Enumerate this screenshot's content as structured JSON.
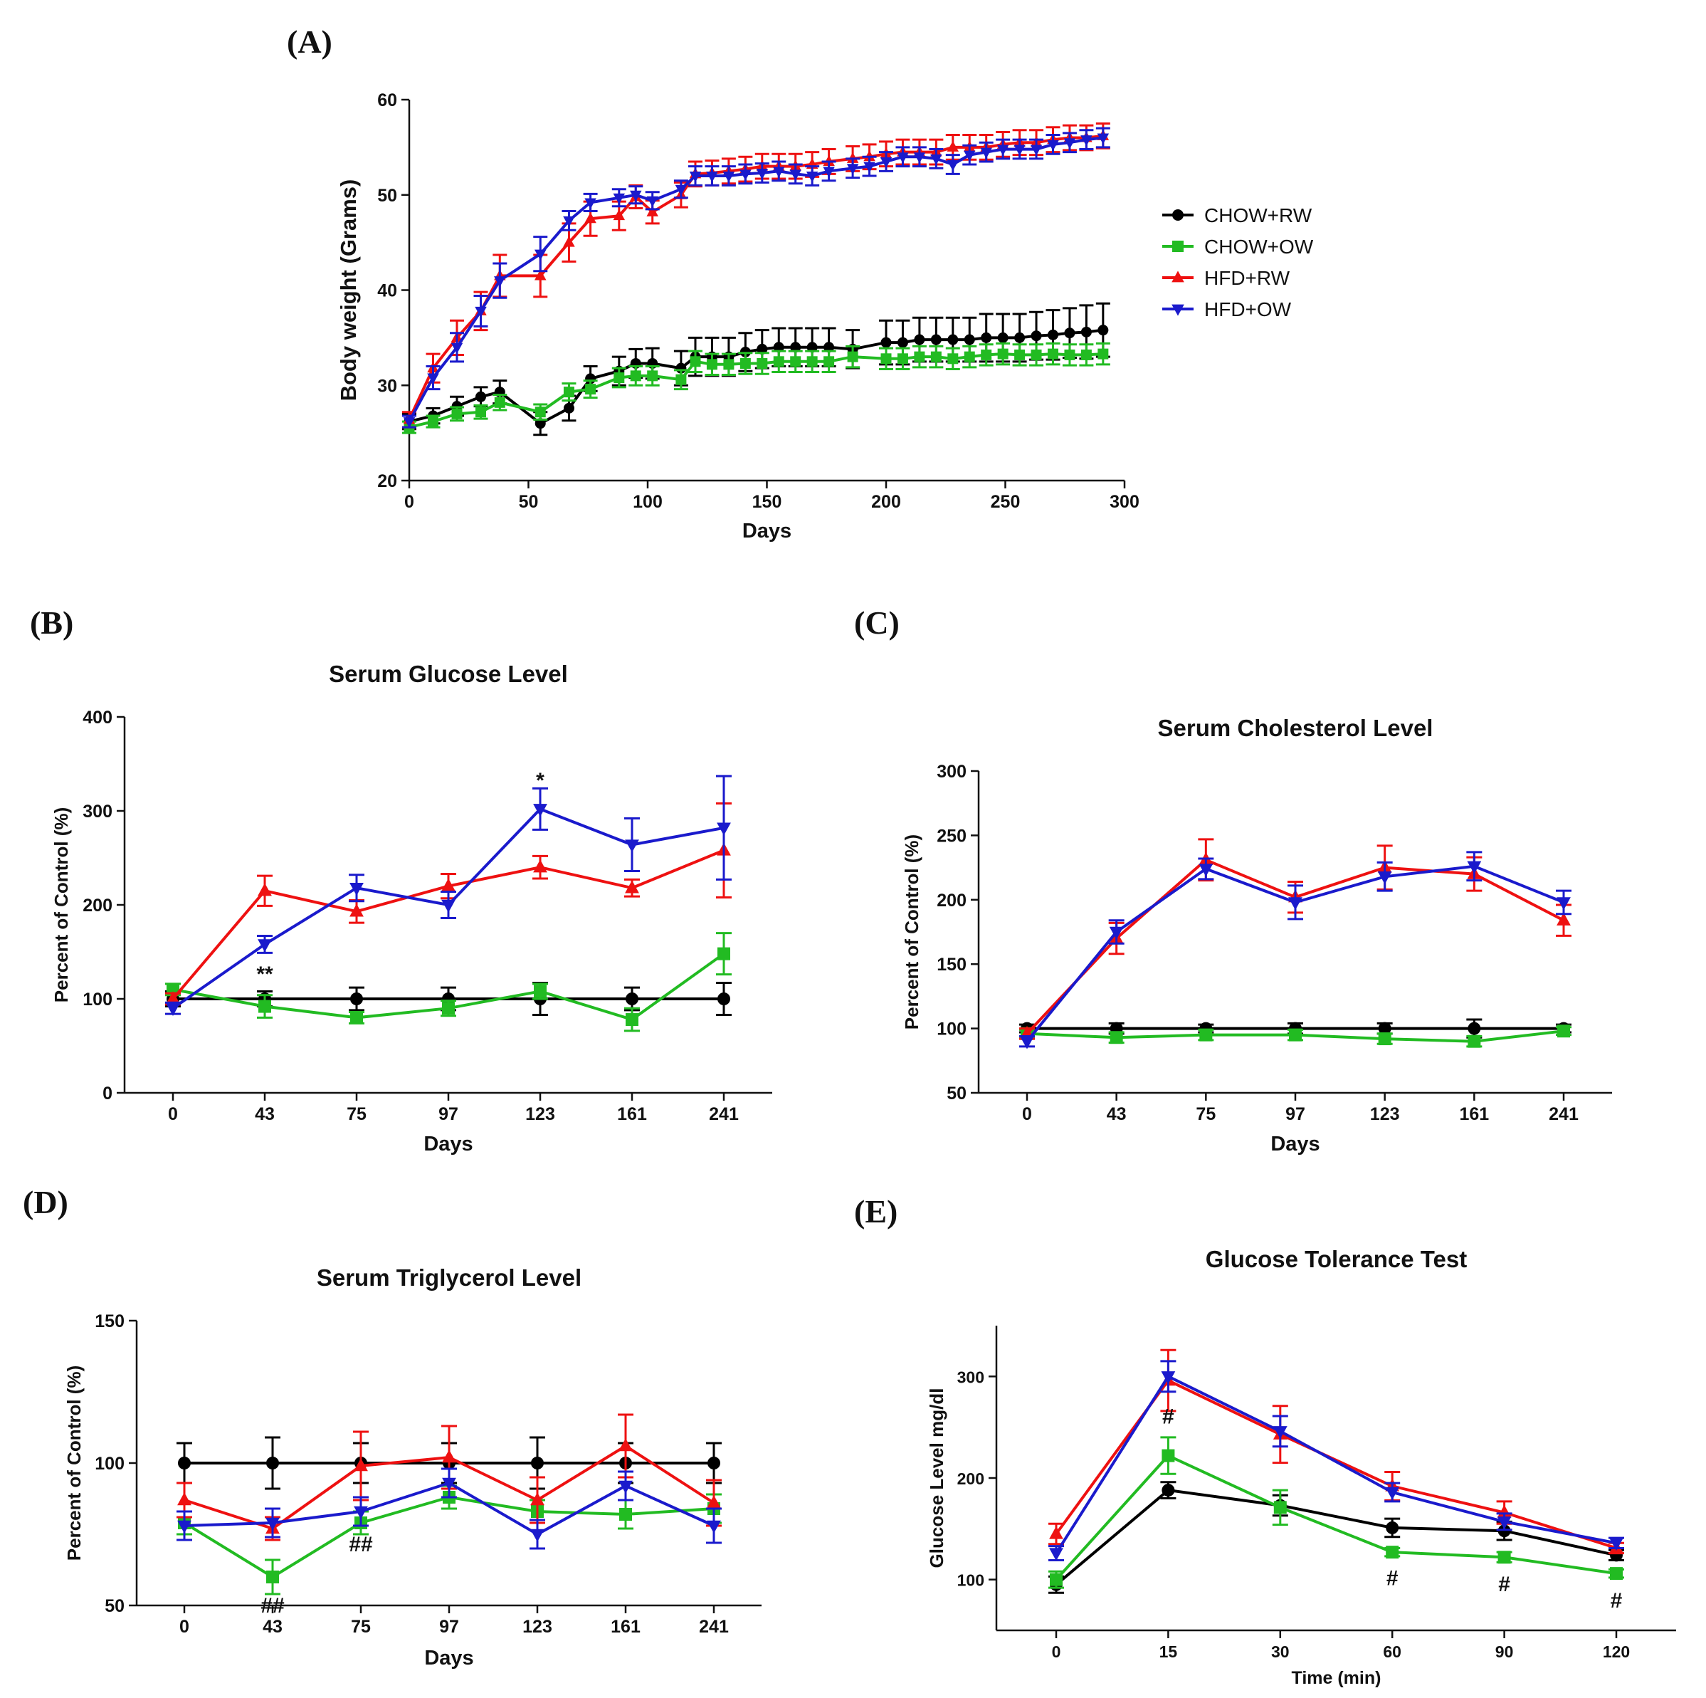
{
  "panel_labels": [
    "(A)",
    "(B)",
    "(C)",
    "(D)",
    "(E)"
  ],
  "colors": {
    "CHOW+RW": "#000000",
    "CHOW+OW": "#22bb22",
    "HFD+RW": "#ee1111",
    "HFD+OW": "#1a1acc"
  },
  "legend": [
    "CHOW+RW",
    "CHOW+OW",
    "HFD+RW",
    "HFD+OW"
  ],
  "chart_data": [
    {
      "id": "A",
      "type": "line",
      "title": "",
      "xlabel": "Days",
      "ylabel": "Body weight (Grams)",
      "xlim": [
        0,
        300
      ],
      "ylim": [
        20,
        60
      ],
      "xticks": [
        0,
        50,
        100,
        150,
        200,
        250,
        300
      ],
      "yticks": [
        20,
        30,
        40,
        50,
        60
      ],
      "series": [
        {
          "name": "CHOW+RW",
          "marker": "circle",
          "x": [
            0,
            10,
            20,
            30,
            38,
            55,
            67,
            76,
            88,
            95,
            102,
            114,
            120,
            127,
            134,
            141,
            148,
            155,
            162,
            169,
            176,
            186,
            200,
            207,
            214,
            221,
            228,
            235,
            242,
            249,
            256,
            263,
            270,
            277,
            284,
            291
          ],
          "y": [
            26.2,
            26.8,
            27.8,
            28.8,
            29.3,
            26.0,
            27.6,
            30.7,
            31.5,
            32.3,
            32.3,
            31.8,
            33.0,
            33.0,
            33.0,
            33.5,
            33.8,
            34.0,
            34.0,
            34.0,
            34.0,
            33.8,
            34.5,
            34.5,
            34.8,
            34.8,
            34.8,
            34.8,
            35.0,
            35.0,
            35.0,
            35.2,
            35.3,
            35.5,
            35.6,
            35.8
          ],
          "err": [
            0.8,
            0.8,
            1.0,
            1.0,
            1.2,
            1.2,
            1.3,
            1.3,
            1.5,
            1.5,
            1.6,
            1.8,
            2.0,
            2.0,
            2.0,
            2.0,
            2.0,
            2.0,
            2.0,
            2.0,
            2.0,
            2.0,
            2.3,
            2.3,
            2.3,
            2.3,
            2.3,
            2.3,
            2.5,
            2.5,
            2.5,
            2.5,
            2.6,
            2.6,
            2.8,
            2.8
          ]
        },
        {
          "name": "CHOW+OW",
          "marker": "square",
          "x": [
            0,
            10,
            20,
            30,
            38,
            55,
            67,
            76,
            88,
            95,
            102,
            114,
            120,
            127,
            134,
            141,
            148,
            155,
            162,
            169,
            176,
            186,
            200,
            207,
            214,
            221,
            228,
            235,
            242,
            249,
            256,
            263,
            270,
            277,
            284,
            291
          ],
          "y": [
            25.6,
            26.2,
            27.0,
            27.2,
            28.2,
            27.2,
            29.3,
            29.6,
            30.8,
            31.0,
            31.0,
            30.6,
            32.5,
            32.2,
            32.2,
            32.3,
            32.3,
            32.5,
            32.5,
            32.5,
            32.5,
            33.0,
            32.8,
            32.8,
            33.0,
            33.0,
            32.8,
            33.0,
            33.2,
            33.3,
            33.2,
            33.2,
            33.3,
            33.2,
            33.2,
            33.3
          ],
          "err": [
            0.6,
            0.6,
            0.7,
            0.7,
            0.8,
            0.8,
            0.9,
            0.9,
            1.0,
            1.0,
            1.0,
            1.0,
            1.1,
            1.1,
            1.1,
            1.1,
            1.1,
            1.1,
            1.1,
            1.1,
            1.1,
            1.1,
            1.1,
            1.1,
            1.1,
            1.1,
            1.1,
            1.1,
            1.1,
            1.1,
            1.1,
            1.1,
            1.1,
            1.1,
            1.1,
            1.1
          ]
        },
        {
          "name": "HFD+RW",
          "marker": "triangle-up",
          "x": [
            0,
            10,
            20,
            30,
            38,
            55,
            67,
            76,
            88,
            95,
            102,
            114,
            120,
            127,
            134,
            141,
            148,
            155,
            162,
            169,
            176,
            186,
            193,
            200,
            207,
            214,
            221,
            228,
            235,
            242,
            249,
            256,
            263,
            270,
            277,
            284,
            291
          ],
          "y": [
            26.4,
            31.8,
            35.0,
            37.8,
            41.5,
            41.5,
            45.0,
            47.5,
            47.8,
            49.8,
            48.2,
            50.0,
            52.2,
            52.3,
            52.5,
            52.7,
            53.0,
            53.0,
            53.0,
            53.2,
            53.5,
            53.8,
            54.0,
            54.3,
            54.5,
            54.5,
            54.5,
            55.0,
            55.0,
            55.0,
            55.3,
            55.5,
            55.5,
            55.8,
            56.0,
            56.0,
            56.2
          ],
          "err": [
            0.8,
            1.5,
            1.8,
            2.0,
            2.2,
            2.2,
            2.0,
            1.8,
            1.5,
            1.2,
            1.2,
            1.3,
            1.3,
            1.3,
            1.3,
            1.3,
            1.3,
            1.3,
            1.3,
            1.3,
            1.3,
            1.3,
            1.3,
            1.3,
            1.3,
            1.3,
            1.3,
            1.3,
            1.3,
            1.3,
            1.3,
            1.3,
            1.3,
            1.3,
            1.3,
            1.3,
            1.3
          ]
        },
        {
          "name": "HFD+OW",
          "marker": "triangle-down",
          "x": [
            0,
            10,
            20,
            30,
            38,
            55,
            67,
            76,
            88,
            95,
            102,
            114,
            120,
            127,
            134,
            141,
            148,
            155,
            162,
            169,
            176,
            186,
            193,
            200,
            207,
            214,
            221,
            228,
            235,
            242,
            249,
            256,
            263,
            270,
            277,
            284,
            291
          ],
          "y": [
            26.2,
            30.8,
            34.0,
            37.8,
            41.0,
            43.8,
            47.3,
            49.2,
            49.7,
            50.0,
            49.4,
            50.6,
            52.0,
            52.0,
            52.0,
            52.2,
            52.3,
            52.5,
            52.2,
            52.0,
            52.5,
            52.8,
            53.0,
            53.5,
            54.0,
            54.0,
            53.8,
            53.2,
            54.2,
            54.5,
            54.8,
            54.8,
            54.8,
            55.3,
            55.5,
            55.8,
            56.0
          ],
          "err": [
            0.6,
            1.2,
            1.5,
            1.6,
            1.8,
            1.8,
            1.0,
            0.9,
            0.9,
            0.9,
            0.9,
            0.9,
            1.0,
            1.0,
            1.0,
            1.0,
            1.0,
            1.0,
            1.0,
            1.0,
            1.0,
            1.0,
            1.0,
            1.0,
            1.0,
            1.0,
            1.0,
            1.0,
            1.0,
            1.0,
            1.0,
            1.0,
            1.0,
            1.0,
            1.0,
            1.0,
            1.0
          ]
        }
      ]
    },
    {
      "id": "B",
      "type": "line",
      "title": "Serum Glucose Level",
      "xlabel": "Days",
      "ylabel": "Percent of Control (%)",
      "categories": [
        "0",
        "43",
        "75",
        "97",
        "123",
        "161",
        "241"
      ],
      "ylim": [
        0,
        400
      ],
      "yticks": [
        0,
        100,
        200,
        300,
        400
      ],
      "series": [
        {
          "name": "CHOW+RW",
          "marker": "circle",
          "values": [
            100,
            100,
            100,
            100,
            100,
            100,
            100
          ],
          "err": [
            8,
            8,
            12,
            12,
            17,
            12,
            17
          ]
        },
        {
          "name": "CHOW+OW",
          "marker": "square",
          "values": [
            110,
            92,
            80,
            90,
            108,
            78,
            148
          ],
          "err": [
            6,
            12,
            6,
            8,
            8,
            12,
            22
          ]
        },
        {
          "name": "HFD+RW",
          "marker": "triangle-up",
          "values": [
            100,
            215,
            193,
            220,
            240,
            218,
            258
          ],
          "err": [
            6,
            16,
            12,
            13,
            12,
            9,
            50
          ]
        },
        {
          "name": "HFD+OW",
          "marker": "triangle-down",
          "values": [
            90,
            158,
            218,
            200,
            302,
            264,
            282
          ],
          "err": [
            6,
            9,
            14,
            14,
            22,
            28,
            55
          ]
        }
      ],
      "annotations": [
        {
          "text": "**",
          "category": "43",
          "value": 128,
          "color": "#1a1acc"
        },
        {
          "text": "*",
          "category": "123",
          "value": 334,
          "color": "#1a1acc"
        }
      ]
    },
    {
      "id": "C",
      "type": "line",
      "title": "Serum Cholesterol Level",
      "xlabel": "Days",
      "ylabel": "Percent of Control (%)",
      "categories": [
        "0",
        "43",
        "75",
        "97",
        "123",
        "161",
        "241"
      ],
      "ylim": [
        50,
        300
      ],
      "yticks": [
        50,
        100,
        150,
        200,
        250,
        300
      ],
      "series": [
        {
          "name": "CHOW+RW",
          "marker": "circle",
          "values": [
            100,
            100,
            100,
            100,
            100,
            100,
            100
          ],
          "err": [
            3,
            4,
            3,
            4,
            4,
            7,
            3
          ]
        },
        {
          "name": "CHOW+OW",
          "marker": "square",
          "values": [
            96,
            93,
            95,
            95,
            92,
            90,
            98
          ],
          "err": [
            3,
            4,
            4,
            4,
            4,
            4,
            3
          ]
        },
        {
          "name": "HFD+RW",
          "marker": "triangle-up",
          "values": [
            96,
            170,
            231,
            202,
            225,
            220,
            184
          ],
          "err": [
            4,
            12,
            16,
            12,
            17,
            13,
            12
          ]
        },
        {
          "name": "HFD+OW",
          "marker": "triangle-down",
          "values": [
            90,
            175,
            224,
            198,
            218,
            226,
            198
          ],
          "err": [
            4,
            9,
            8,
            13,
            11,
            11,
            9
          ]
        }
      ]
    },
    {
      "id": "D",
      "type": "line",
      "title": "Serum Triglycerol Level",
      "xlabel": "Days",
      "ylabel": "Percent of Control (%)",
      "categories": [
        "0",
        "43",
        "75",
        "97",
        "123",
        "161",
        "241"
      ],
      "ylim": [
        50,
        150
      ],
      "yticks": [
        50,
        100,
        150
      ],
      "series": [
        {
          "name": "CHOW+RW",
          "marker": "circle",
          "values": [
            100,
            100,
            100,
            100,
            100,
            100,
            100
          ],
          "err": [
            7,
            9,
            7,
            7,
            9,
            7,
            7
          ]
        },
        {
          "name": "CHOW+OW",
          "marker": "square",
          "values": [
            79,
            60,
            79,
            88,
            83,
            82,
            84
          ],
          "err": [
            4,
            6,
            4,
            4,
            4,
            5,
            5
          ]
        },
        {
          "name": "HFD+RW",
          "marker": "triangle-up",
          "values": [
            87,
            77,
            99,
            102,
            87,
            106,
            86
          ],
          "err": [
            6,
            4,
            12,
            11,
            8,
            11,
            8
          ]
        },
        {
          "name": "HFD+OW",
          "marker": "triangle-down",
          "values": [
            78,
            79,
            83,
            93,
            75,
            92,
            78
          ],
          "err": [
            5,
            5,
            5,
            5,
            5,
            5,
            6
          ]
        }
      ],
      "annotations": [
        {
          "text": "##",
          "category": "43",
          "value": 50.5,
          "color": "#22bb22"
        },
        {
          "text": "##",
          "category": "75",
          "value": 72,
          "color": "#22bb22"
        }
      ]
    },
    {
      "id": "E",
      "type": "line",
      "title": "Glucose Tolerance Test",
      "xlabel": "Time (min)",
      "ylabel": "Glucose Level mg/dl",
      "categories": [
        "0",
        "15",
        "30",
        "60",
        "90",
        "120"
      ],
      "ylim": [
        50,
        350
      ],
      "yticks": [
        100,
        200,
        300
      ],
      "series": [
        {
          "name": "CHOW+RW",
          "marker": "circle",
          "values": [
            95,
            188,
            173,
            151,
            148,
            124
          ],
          "err": [
            8,
            8,
            10,
            9,
            9,
            5
          ]
        },
        {
          "name": "CHOW+OW",
          "marker": "square",
          "values": [
            100,
            222,
            171,
            127,
            122,
            106
          ],
          "err": [
            8,
            18,
            17,
            4,
            5,
            4
          ]
        },
        {
          "name": "HFD+RW",
          "marker": "triangle-up",
          "values": [
            145,
            296,
            243,
            192,
            166,
            131
          ],
          "err": [
            10,
            30,
            28,
            14,
            11,
            5
          ]
        },
        {
          "name": "HFD+OW",
          "marker": "triangle-down",
          "values": [
            126,
            300,
            246,
            186,
            157,
            136
          ],
          "err": [
            7,
            15,
            15,
            9,
            8,
            5
          ]
        }
      ],
      "annotations": [
        {
          "text": "#",
          "category": "15",
          "value": 262,
          "color": "#22bb22"
        },
        {
          "text": "#",
          "category": "60",
          "value": 103,
          "color": "#22bb22"
        },
        {
          "text": "#",
          "category": "90",
          "value": 97,
          "color": "#22bb22"
        },
        {
          "text": "#",
          "category": "120",
          "value": 81,
          "color": "#22bb22"
        }
      ]
    }
  ]
}
